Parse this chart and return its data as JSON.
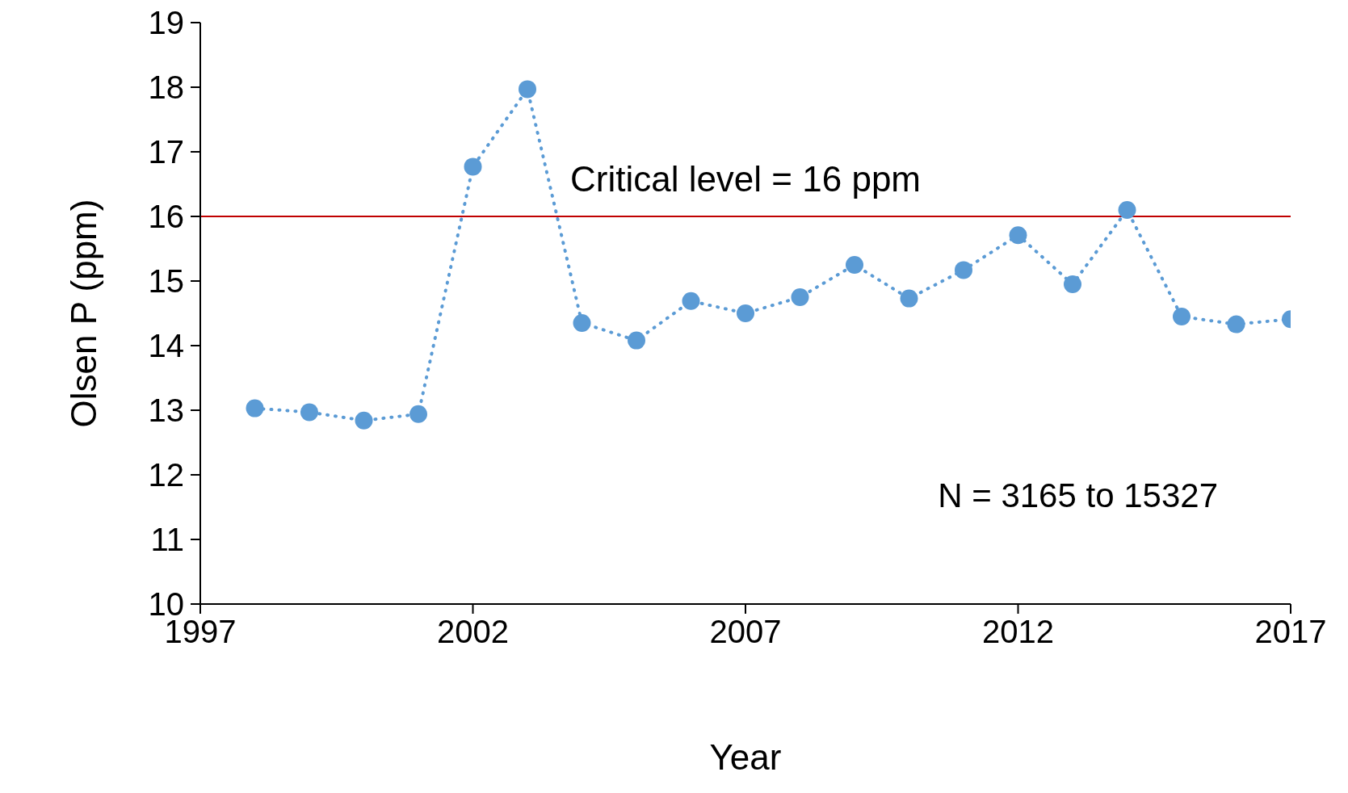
{
  "chart_data": {
    "type": "line",
    "xlabel": "Year",
    "ylabel": "Olsen P (ppm)",
    "x": [
      1998,
      1999,
      2000,
      2001,
      2002,
      2003,
      2004,
      2005,
      2006,
      2007,
      2008,
      2009,
      2010,
      2011,
      2012,
      2013,
      2014,
      2015,
      2016,
      2017
    ],
    "series": [
      {
        "color": "#5b9bd5",
        "values": [
          13.03,
          12.97,
          12.84,
          12.94,
          16.77,
          17.97,
          14.35,
          14.08,
          14.69,
          14.5,
          14.75,
          15.25,
          14.73,
          15.17,
          15.71,
          14.95,
          16.1,
          14.45,
          14.33,
          14.41
        ]
      }
    ],
    "xlim": [
      1997,
      2017
    ],
    "xticks": [
      1997,
      2002,
      2007,
      2012,
      2017
    ],
    "ylim": [
      10,
      19
    ],
    "yticks": [
      10,
      11,
      12,
      13,
      14,
      15,
      16,
      17,
      18,
      19
    ],
    "ref_lines": [
      {
        "axis": "y",
        "value": 16,
        "label": "Critical level = 16 ppm",
        "color": "#c00000"
      }
    ],
    "annotations": [
      "N = 3165 to 15327"
    ],
    "grid": false,
    "legend": false,
    "marker": "circle",
    "line_style": "dotted"
  }
}
